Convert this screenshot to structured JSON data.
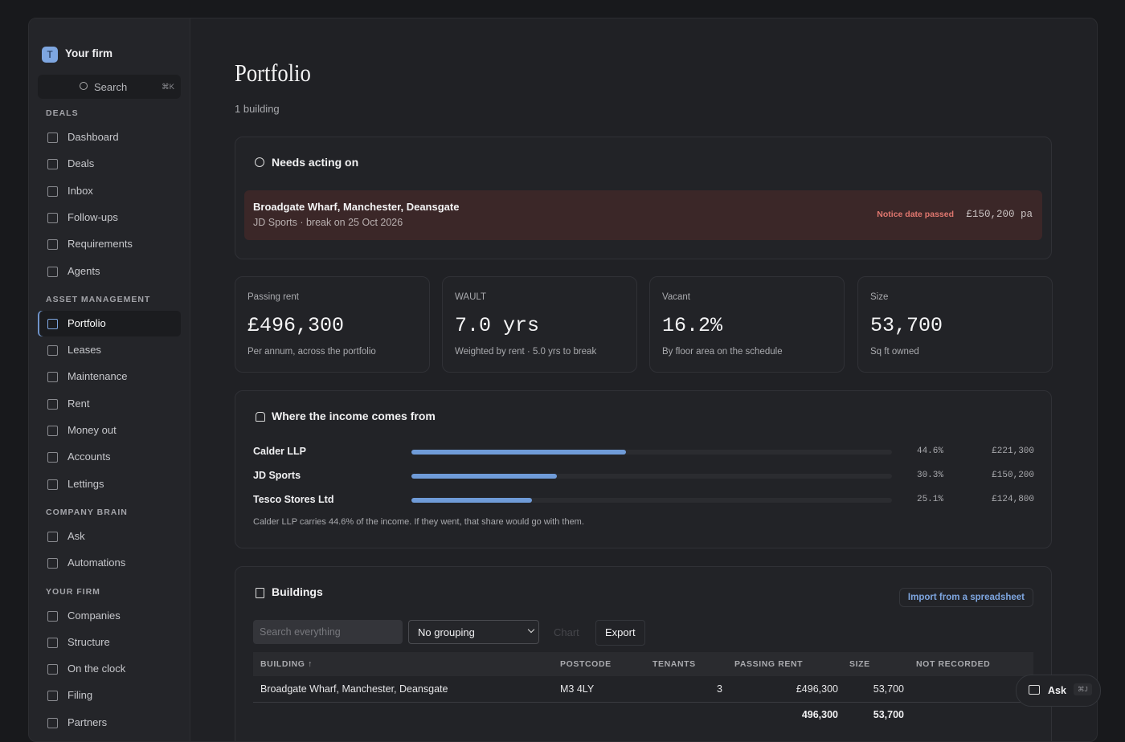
{
  "sidebar": {
    "firm": {
      "initial": "T",
      "name": "Your firm"
    },
    "search": {
      "label": "Search",
      "shortcut": "⌘K"
    },
    "sections": [
      {
        "title": "DEALS",
        "items": [
          "Dashboard",
          "Deals",
          "Inbox",
          "Follow-ups",
          "Requirements",
          "Agents"
        ]
      },
      {
        "title": "ASSET MANAGEMENT",
        "items": [
          "Portfolio",
          "Leases",
          "Maintenance",
          "Rent",
          "Money out",
          "Accounts",
          "Lettings"
        ]
      },
      {
        "title": "COMPANY BRAIN",
        "items": [
          "Ask",
          "Automations"
        ]
      },
      {
        "title": "YOUR FIRM",
        "items": [
          "Companies",
          "Structure",
          "On the clock",
          "Filing",
          "Partners"
        ]
      }
    ],
    "active": "Portfolio"
  },
  "header": {
    "title": "Portfolio",
    "subtitle": "1 building"
  },
  "alerts": {
    "title": "Needs acting on",
    "items": [
      {
        "name": "Broadgate Wharf, Manchester, Deansgate",
        "detail": "JD Sports · break on 25 Oct 2026",
        "status": "Notice date passed",
        "amount": "£150,200 pa"
      }
    ]
  },
  "stats": [
    {
      "label": "Passing rent",
      "value": "£496,300",
      "note": "Per annum, across the portfolio"
    },
    {
      "label": "WAULT",
      "value": "7.0 yrs",
      "note": "Weighted by rent · 5.0 yrs to break"
    },
    {
      "label": "Vacant",
      "value": "16.2%",
      "note": "By floor area on the schedule"
    },
    {
      "label": "Size",
      "value": "53,700",
      "note": "Sq ft owned"
    }
  ],
  "income": {
    "title": "Where the income comes from",
    "rows": [
      {
        "name": "Calder LLP",
        "share": 44.6,
        "share_label": "44.6%",
        "amount": "£221,300"
      },
      {
        "name": "JD Sports",
        "share": 30.3,
        "share_label": "30.3%",
        "amount": "£150,200"
      },
      {
        "name": "Tesco Stores Ltd",
        "share": 25.1,
        "share_label": "25.1%",
        "amount": "£124,800"
      }
    ],
    "note": "Calder LLP carries 44.6% of the income. If they went, that share would go with them."
  },
  "buildings": {
    "title": "Buildings",
    "import": "Import from a spreadsheet",
    "search_placeholder": "Search everything",
    "grouping": "No grouping",
    "chart": "Chart",
    "export": "Export",
    "columns": [
      "BUILDING ↑",
      "POSTCODE",
      "TENANTS",
      "PASSING RENT",
      "SIZE",
      "NOT RECORDED"
    ],
    "rows": [
      {
        "building": "Broadgate Wharf, Manchester, Deansgate",
        "postcode": "M3 4LY",
        "tenants": 3,
        "passing_rent": "£496,300",
        "size": "53,700"
      }
    ],
    "totals": {
      "passing_rent": "496,300",
      "size": "53,700"
    }
  },
  "ask": {
    "label": "Ask",
    "shortcut": "⌘J"
  }
}
